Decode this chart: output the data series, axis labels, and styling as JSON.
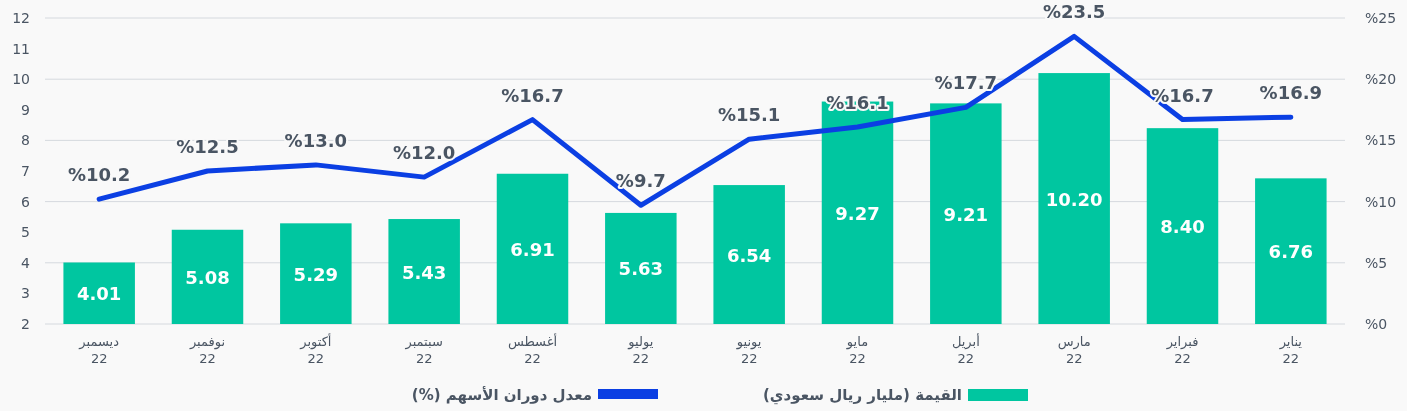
{
  "chart_data": {
    "type": "bar",
    "categories": [
      "ديسمبر\n22",
      "نوفمبر\n22",
      "أكتوبر\n22",
      "سبتمبر\n22",
      "أغسطس\n22",
      "يوليو\n22",
      "يونيو\n22",
      "مايو\n22",
      "أبريل\n22",
      "مارس\n22",
      "فبراير\n22",
      "يناير\n22"
    ],
    "series": [
      {
        "name": "القيمة (مليار ريال سعودي)",
        "color": "#00c6a0",
        "values": [
          4.01,
          5.08,
          5.29,
          5.43,
          6.91,
          5.63,
          6.54,
          9.27,
          9.21,
          10.2,
          8.4,
          6.76
        ],
        "value_labels": [
          "4.01",
          "5.08",
          "5.29",
          "5.43",
          "6.91",
          "5.63",
          "6.54",
          "9.27",
          "9.21",
          "10.20",
          "8.40",
          "6.76"
        ]
      },
      {
        "name": "معدل دوران الأسهم (%)",
        "type": "line",
        "axis": "y2",
        "color": "#0b3fe3",
        "values": [
          10.2,
          12.5,
          13.0,
          12.0,
          16.7,
          9.7,
          15.1,
          16.1,
          17.7,
          23.5,
          16.7,
          16.9
        ],
        "value_labels": [
          "%10.2",
          "%12.5",
          "%13.0",
          "%12.0",
          "%16.7",
          "%9.7",
          "%15.1",
          "%16.1",
          "%17.7",
          "%23.5",
          "%16.7",
          "%16.9"
        ]
      }
    ],
    "ylim": [
      2,
      12
    ],
    "yticks": [
      2,
      3,
      4,
      5,
      6,
      7,
      8,
      9,
      10,
      11,
      12
    ],
    "y2lim": [
      0,
      25
    ],
    "y2ticks": [
      {
        "value": 0,
        "label": "%0"
      },
      {
        "value": 5,
        "label": "%5"
      },
      {
        "value": 10,
        "label": "%10"
      },
      {
        "value": 15,
        "label": "%15"
      },
      {
        "value": 20,
        "label": "%20"
      },
      {
        "value": 25,
        "label": "%25"
      }
    ],
    "grid": true,
    "legend": "bottom"
  }
}
